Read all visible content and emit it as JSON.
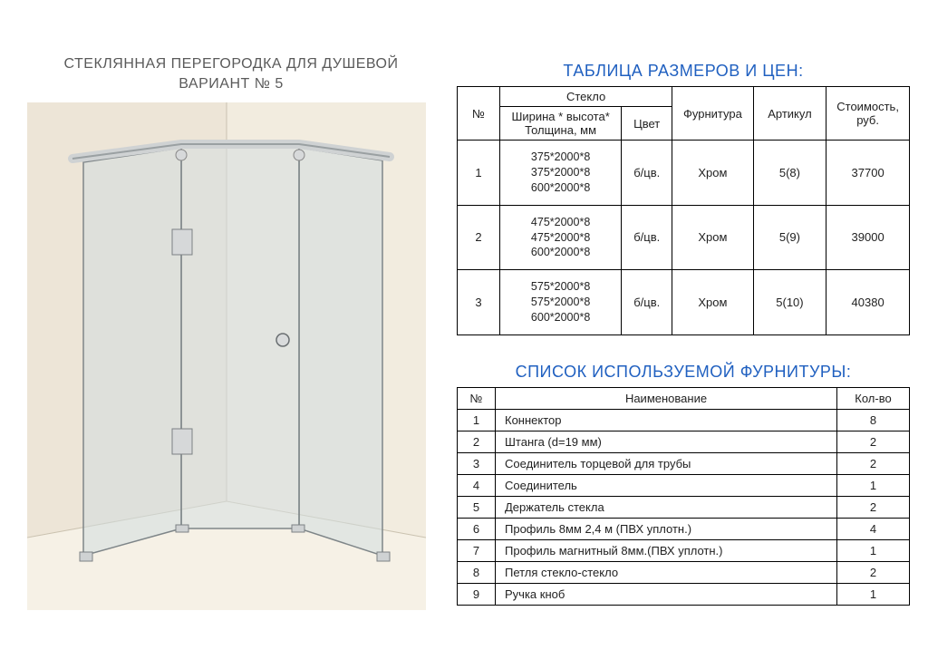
{
  "left": {
    "title_line1": "СТЕКЛЯННАЯ ПЕРЕГОРОДКА ДЛЯ ДУШЕВОЙ",
    "title_line2": "ВАРИАНТ № 5"
  },
  "sizes_heading": "ТАБЛИЦА РАЗМЕРОВ И ЦЕН:",
  "sizes_table": {
    "head": {
      "num": "№",
      "glass_group": "Стекло",
      "dims": "Ширина * высота* Толщина, мм",
      "color": "Цвет",
      "fittings": "Фурнитура",
      "article": "Артикул",
      "price": "Стоимость, руб."
    },
    "rows": [
      {
        "n": "1",
        "dims": "375*2000*8\n375*2000*8\n600*2000*8",
        "color": "б/цв.",
        "fit": "Хром",
        "art": "5(8)",
        "price": "37700"
      },
      {
        "n": "2",
        "dims": "475*2000*8\n475*2000*8\n600*2000*8",
        "color": "б/цв.",
        "fit": "Хром",
        "art": "5(9)",
        "price": "39000"
      },
      {
        "n": "3",
        "dims": "575*2000*8\n575*2000*8\n600*2000*8",
        "color": "б/цв.",
        "fit": "Хром",
        "art": "5(10)",
        "price": "40380"
      }
    ]
  },
  "hardware_heading": "СПИСОК ИСПОЛЬЗУЕМОЙ ФУРНИТУРЫ:",
  "hardware_table": {
    "head": {
      "num": "№",
      "name": "Наименование",
      "qty": "Кол-во"
    },
    "rows": [
      {
        "n": "1",
        "name": "Коннектор",
        "qty": "8"
      },
      {
        "n": "2",
        "name": "Штанга (d=19 мм)",
        "qty": "2"
      },
      {
        "n": "3",
        "name": "Соединитель торцевой для трубы",
        "qty": "2"
      },
      {
        "n": "4",
        "name": "Соединитель",
        "qty": "1"
      },
      {
        "n": "5",
        "name": "Держатель стекла",
        "qty": "2"
      },
      {
        "n": "6",
        "name": "Профиль 8мм 2,4 м (ПВХ уплотн.)",
        "qty": "4"
      },
      {
        "n": "7",
        "name": "Профиль магнитный  8мм.(ПВХ уплотн.)",
        "qty": "1"
      },
      {
        "n": "8",
        "name": "Петля стекло-стекло",
        "qty": "2"
      },
      {
        "n": "9",
        "name": "Ручка кноб",
        "qty": "1"
      }
    ]
  },
  "style": {
    "blue": "#2060c0",
    "bg_room": "#efe8dc",
    "glass_stroke": "#8a8f92",
    "glass_fill": "#dfe4e4",
    "floor": "#f5f0e6",
    "bar": "#c9cccd"
  }
}
